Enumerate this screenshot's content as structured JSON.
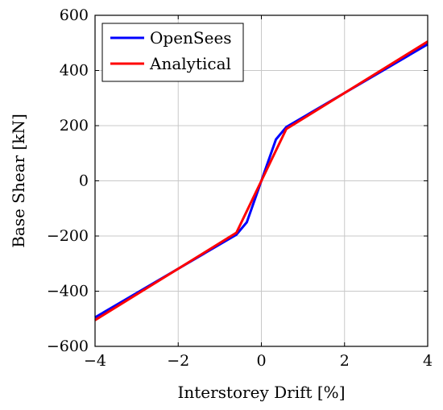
{
  "chart_data": {
    "type": "line",
    "xlabel": "Interstorey Drift [%]",
    "ylabel": "Base Shear [kN]",
    "xlim": [
      -4,
      4
    ],
    "ylim": [
      -600,
      600
    ],
    "xticks": [
      -4,
      -2,
      0,
      2,
      4
    ],
    "yticks": [
      -600,
      -400,
      -200,
      0,
      200,
      400,
      600
    ],
    "xtick_labels": [
      "−4",
      "−2",
      "0",
      "2",
      "4"
    ],
    "ytick_labels": [
      "−600",
      "−400",
      "−200",
      "0",
      "200",
      "400",
      "600"
    ],
    "grid": true,
    "legend_position": "top-left",
    "series": [
      {
        "name": "OpenSees",
        "color": "#0000ff",
        "points": [
          [
            -4,
            -495
          ],
          [
            -0.6,
            -195
          ],
          [
            -0.35,
            -150
          ],
          [
            0,
            0
          ],
          [
            0.35,
            150
          ],
          [
            0.6,
            195
          ],
          [
            4,
            495
          ]
        ]
      },
      {
        "name": "Analytical",
        "color": "#ff0000",
        "points": [
          [
            -4,
            -505
          ],
          [
            -0.6,
            -188
          ],
          [
            0,
            0
          ],
          [
            0.6,
            188
          ],
          [
            4,
            505
          ]
        ]
      }
    ]
  }
}
